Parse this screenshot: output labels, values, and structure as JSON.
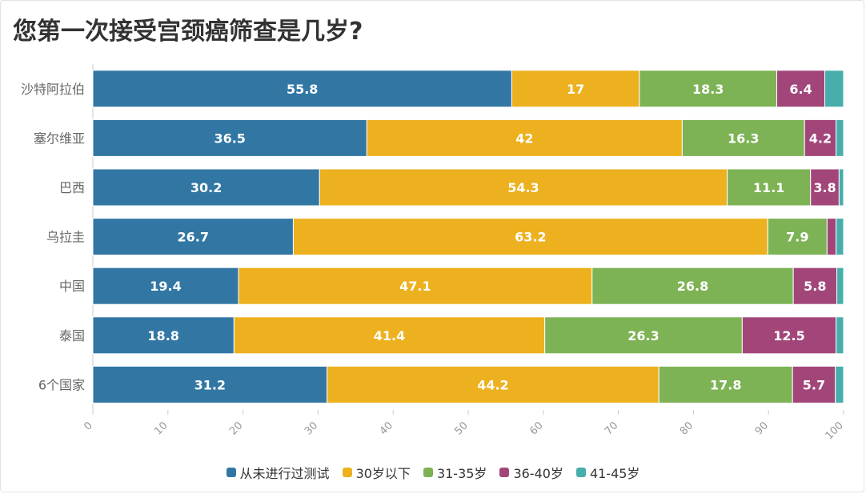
{
  "chart_data": {
    "type": "bar",
    "orientation": "horizontal",
    "stacked": true,
    "title": "您第一次接受宫颈癌筛查是几岁?",
    "categories": [
      "沙特阿拉伯",
      "塞尔维亚",
      "巴西",
      "乌拉圭",
      "中国",
      "泰国",
      "6个国家"
    ],
    "series": [
      {
        "name": "从未进行过测试",
        "color": "#3277a4",
        "values": [
          55.8,
          36.5,
          30.2,
          26.7,
          19.4,
          18.8,
          31.2
        ]
      },
      {
        "name": "30岁以下",
        "color": "#edb11f",
        "values": [
          17,
          42,
          54.3,
          63.2,
          47.1,
          41.4,
          44.2
        ]
      },
      {
        "name": "31-35岁",
        "color": "#7db355",
        "values": [
          18.3,
          16.3,
          11.1,
          7.9,
          26.8,
          26.3,
          17.8
        ]
      },
      {
        "name": "36-40岁",
        "color": "#a2467a",
        "values": [
          6.4,
          4.2,
          3.8,
          1.2,
          5.8,
          12.5,
          5.7
        ]
      },
      {
        "name": "41-45岁",
        "color": "#48aeab",
        "values": [
          2.5,
          1,
          0.6,
          1,
          0.9,
          1,
          1.1
        ]
      }
    ],
    "xlim": [
      0,
      100
    ],
    "xticks": [
      "0",
      "10",
      "20",
      "30",
      "40",
      "50",
      "60",
      "70",
      "80",
      "90",
      "100"
    ],
    "label_min_value": 3,
    "legend_position": "bottom"
  }
}
